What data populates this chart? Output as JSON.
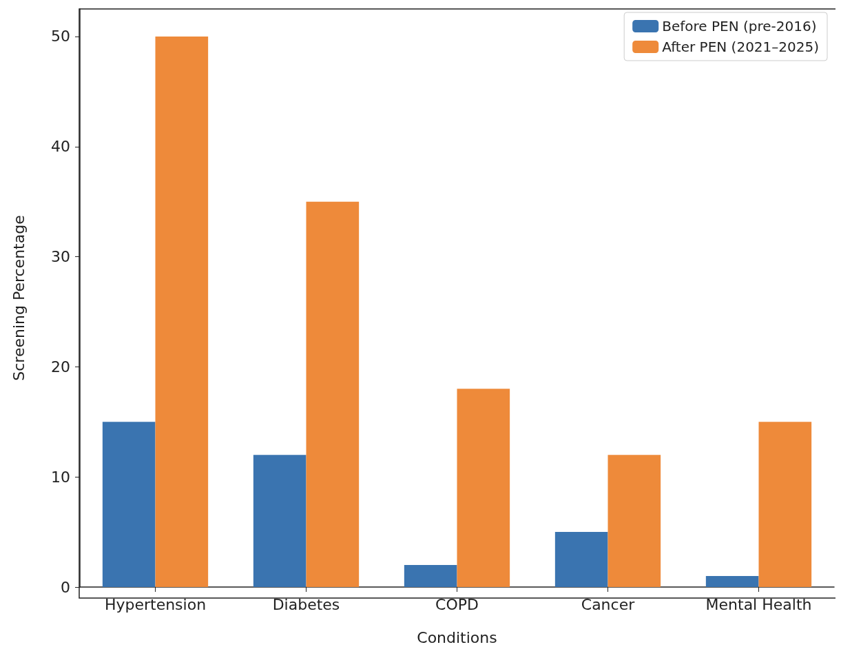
{
  "chart_data": {
    "type": "bar",
    "xlabel": "Conditions",
    "ylabel": "Screening Percentage",
    "categories": [
      "Hypertension",
      "Diabetes",
      "COPD",
      "Cancer",
      "Mental Health"
    ],
    "series": [
      {
        "name": "Before PEN (pre-2016)",
        "color": "#3a74b0",
        "values": [
          15,
          12,
          2,
          5,
          1
        ]
      },
      {
        "name": "After PEN (2021–2025)",
        "color": "#ee8a3a",
        "values": [
          50,
          35,
          18,
          12,
          15
        ]
      }
    ],
    "ylim": [
      0,
      52.5
    ],
    "yticks": [
      0,
      10,
      20,
      30,
      40,
      50
    ],
    "grid": false,
    "legend": "top right"
  }
}
